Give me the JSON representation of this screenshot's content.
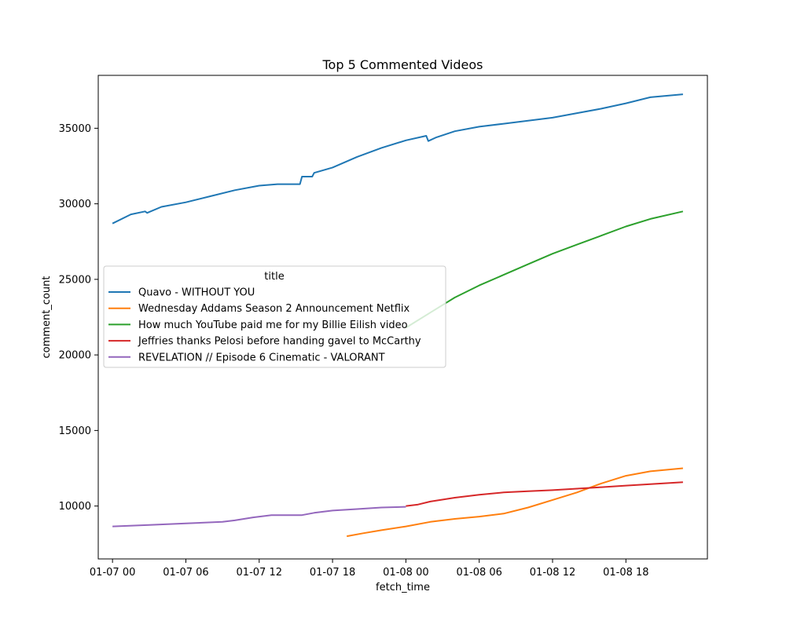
{
  "chart_data": {
    "type": "line",
    "title": "Top 5 Commented Videos",
    "xlabel": "fetch_time",
    "ylabel": "comment_count",
    "grid": false,
    "legend": {
      "title": "title",
      "placement": "center-left"
    },
    "xlim": [
      "2023-01-06 22:50",
      "2023-01-09 00:40"
    ],
    "ylim": [
      6500,
      38500
    ],
    "x_ticks": [
      {
        "value": "2023-01-07 00:00",
        "label": "01-07 00"
      },
      {
        "value": "2023-01-07 06:00",
        "label": "01-07 06"
      },
      {
        "value": "2023-01-07 12:00",
        "label": "01-07 12"
      },
      {
        "value": "2023-01-07 18:00",
        "label": "01-07 18"
      },
      {
        "value": "2023-01-08 00:00",
        "label": "01-08 00"
      },
      {
        "value": "2023-01-08 06:00",
        "label": "01-08 06"
      },
      {
        "value": "2023-01-08 12:00",
        "label": "01-08 12"
      },
      {
        "value": "2023-01-08 18:00",
        "label": "01-08 18"
      }
    ],
    "y_ticks": [
      10000,
      15000,
      20000,
      25000,
      30000,
      35000
    ],
    "series": [
      {
        "name": "Quavo - WITHOUT YOU",
        "color": "#1f77b4",
        "x": [
          "2023-01-07 00:00",
          "2023-01-07 01:30",
          "2023-01-07 02:40",
          "2023-01-07 02:50",
          "2023-01-07 04:00",
          "2023-01-07 06:00",
          "2023-01-07 08:00",
          "2023-01-07 10:00",
          "2023-01-07 12:00",
          "2023-01-07 13:30",
          "2023-01-07 15:00",
          "2023-01-07 15:20",
          "2023-01-07 15:30",
          "2023-01-07 16:20",
          "2023-01-07 16:30",
          "2023-01-07 18:00",
          "2023-01-07 20:00",
          "2023-01-07 22:00",
          "2023-01-08 00:00",
          "2023-01-08 01:40",
          "2023-01-08 01:50",
          "2023-01-08 02:30",
          "2023-01-08 04:00",
          "2023-01-08 06:00",
          "2023-01-08 08:00",
          "2023-01-08 10:00",
          "2023-01-08 12:00",
          "2023-01-08 14:00",
          "2023-01-08 16:00",
          "2023-01-08 18:00",
          "2023-01-08 20:00",
          "2023-01-08 22:40"
        ],
        "y": [
          28700,
          29300,
          29500,
          29400,
          29800,
          30100,
          30500,
          30900,
          31200,
          31300,
          31300,
          31300,
          31800,
          31800,
          32050,
          32400,
          33100,
          33700,
          34200,
          34500,
          34150,
          34400,
          34800,
          35100,
          35300,
          35500,
          35700,
          36000,
          36300,
          36650,
          37050,
          37250
        ]
      },
      {
        "name": "Wednesday Addams  Season 2 Announcement  Netflix",
        "color": "#ff7f0e",
        "x": [
          "2023-01-07 19:10",
          "2023-01-07 20:30",
          "2023-01-07 22:00",
          "2023-01-08 00:00",
          "2023-01-08 02:00",
          "2023-01-08 04:00",
          "2023-01-08 06:00",
          "2023-01-08 08:00",
          "2023-01-08 10:00",
          "2023-01-08 12:00",
          "2023-01-08 14:00",
          "2023-01-08 16:00",
          "2023-01-08 18:00",
          "2023-01-08 20:00",
          "2023-01-08 22:40"
        ],
        "y": [
          8000,
          8200,
          8400,
          8650,
          8950,
          9150,
          9300,
          9500,
          9900,
          10400,
          10900,
          11500,
          12000,
          12300,
          12500
        ]
      },
      {
        "name": "How much YouTube paid me for my Billie Eilish video",
        "color": "#2ca02c",
        "x": [
          "2023-01-08 00:00",
          "2023-01-08 02:00",
          "2023-01-08 04:00",
          "2023-01-08 06:00",
          "2023-01-08 08:00",
          "2023-01-08 10:00",
          "2023-01-08 12:00",
          "2023-01-08 14:00",
          "2023-01-08 16:00",
          "2023-01-08 18:00",
          "2023-01-08 20:00",
          "2023-01-08 22:40"
        ],
        "y": [
          21800,
          22800,
          23800,
          24600,
          25300,
          26000,
          26700,
          27300,
          27900,
          28500,
          29000,
          29500
        ]
      },
      {
        "name": "Jeffries thanks Pelosi before handing gavel to McCarthy",
        "color": "#d62728",
        "x": [
          "2023-01-08 00:00",
          "2023-01-08 01:00",
          "2023-01-08 02:00",
          "2023-01-08 04:00",
          "2023-01-08 06:00",
          "2023-01-08 08:00",
          "2023-01-08 10:00",
          "2023-01-08 12:00",
          "2023-01-08 14:00",
          "2023-01-08 16:00",
          "2023-01-08 18:00",
          "2023-01-08 20:00",
          "2023-01-08 22:40"
        ],
        "y": [
          10000,
          10100,
          10300,
          10550,
          10750,
          10900,
          10980,
          11050,
          11150,
          11250,
          11350,
          11450,
          11580
        ]
      },
      {
        "name": "REVELATION // Episode 6 Cinematic - VALORANT",
        "color": "#9467bd",
        "x": [
          "2023-01-07 00:00",
          "2023-01-07 03:00",
          "2023-01-07 06:00",
          "2023-01-07 09:00",
          "2023-01-07 10:00",
          "2023-01-07 11:30",
          "2023-01-07 13:00",
          "2023-01-07 15:30",
          "2023-01-07 16:30",
          "2023-01-07 18:00",
          "2023-01-07 20:00",
          "2023-01-07 22:00",
          "2023-01-08 00:00"
        ],
        "y": [
          8650,
          8750,
          8850,
          8950,
          9050,
          9250,
          9400,
          9400,
          9550,
          9700,
          9800,
          9900,
          9950
        ]
      }
    ]
  }
}
